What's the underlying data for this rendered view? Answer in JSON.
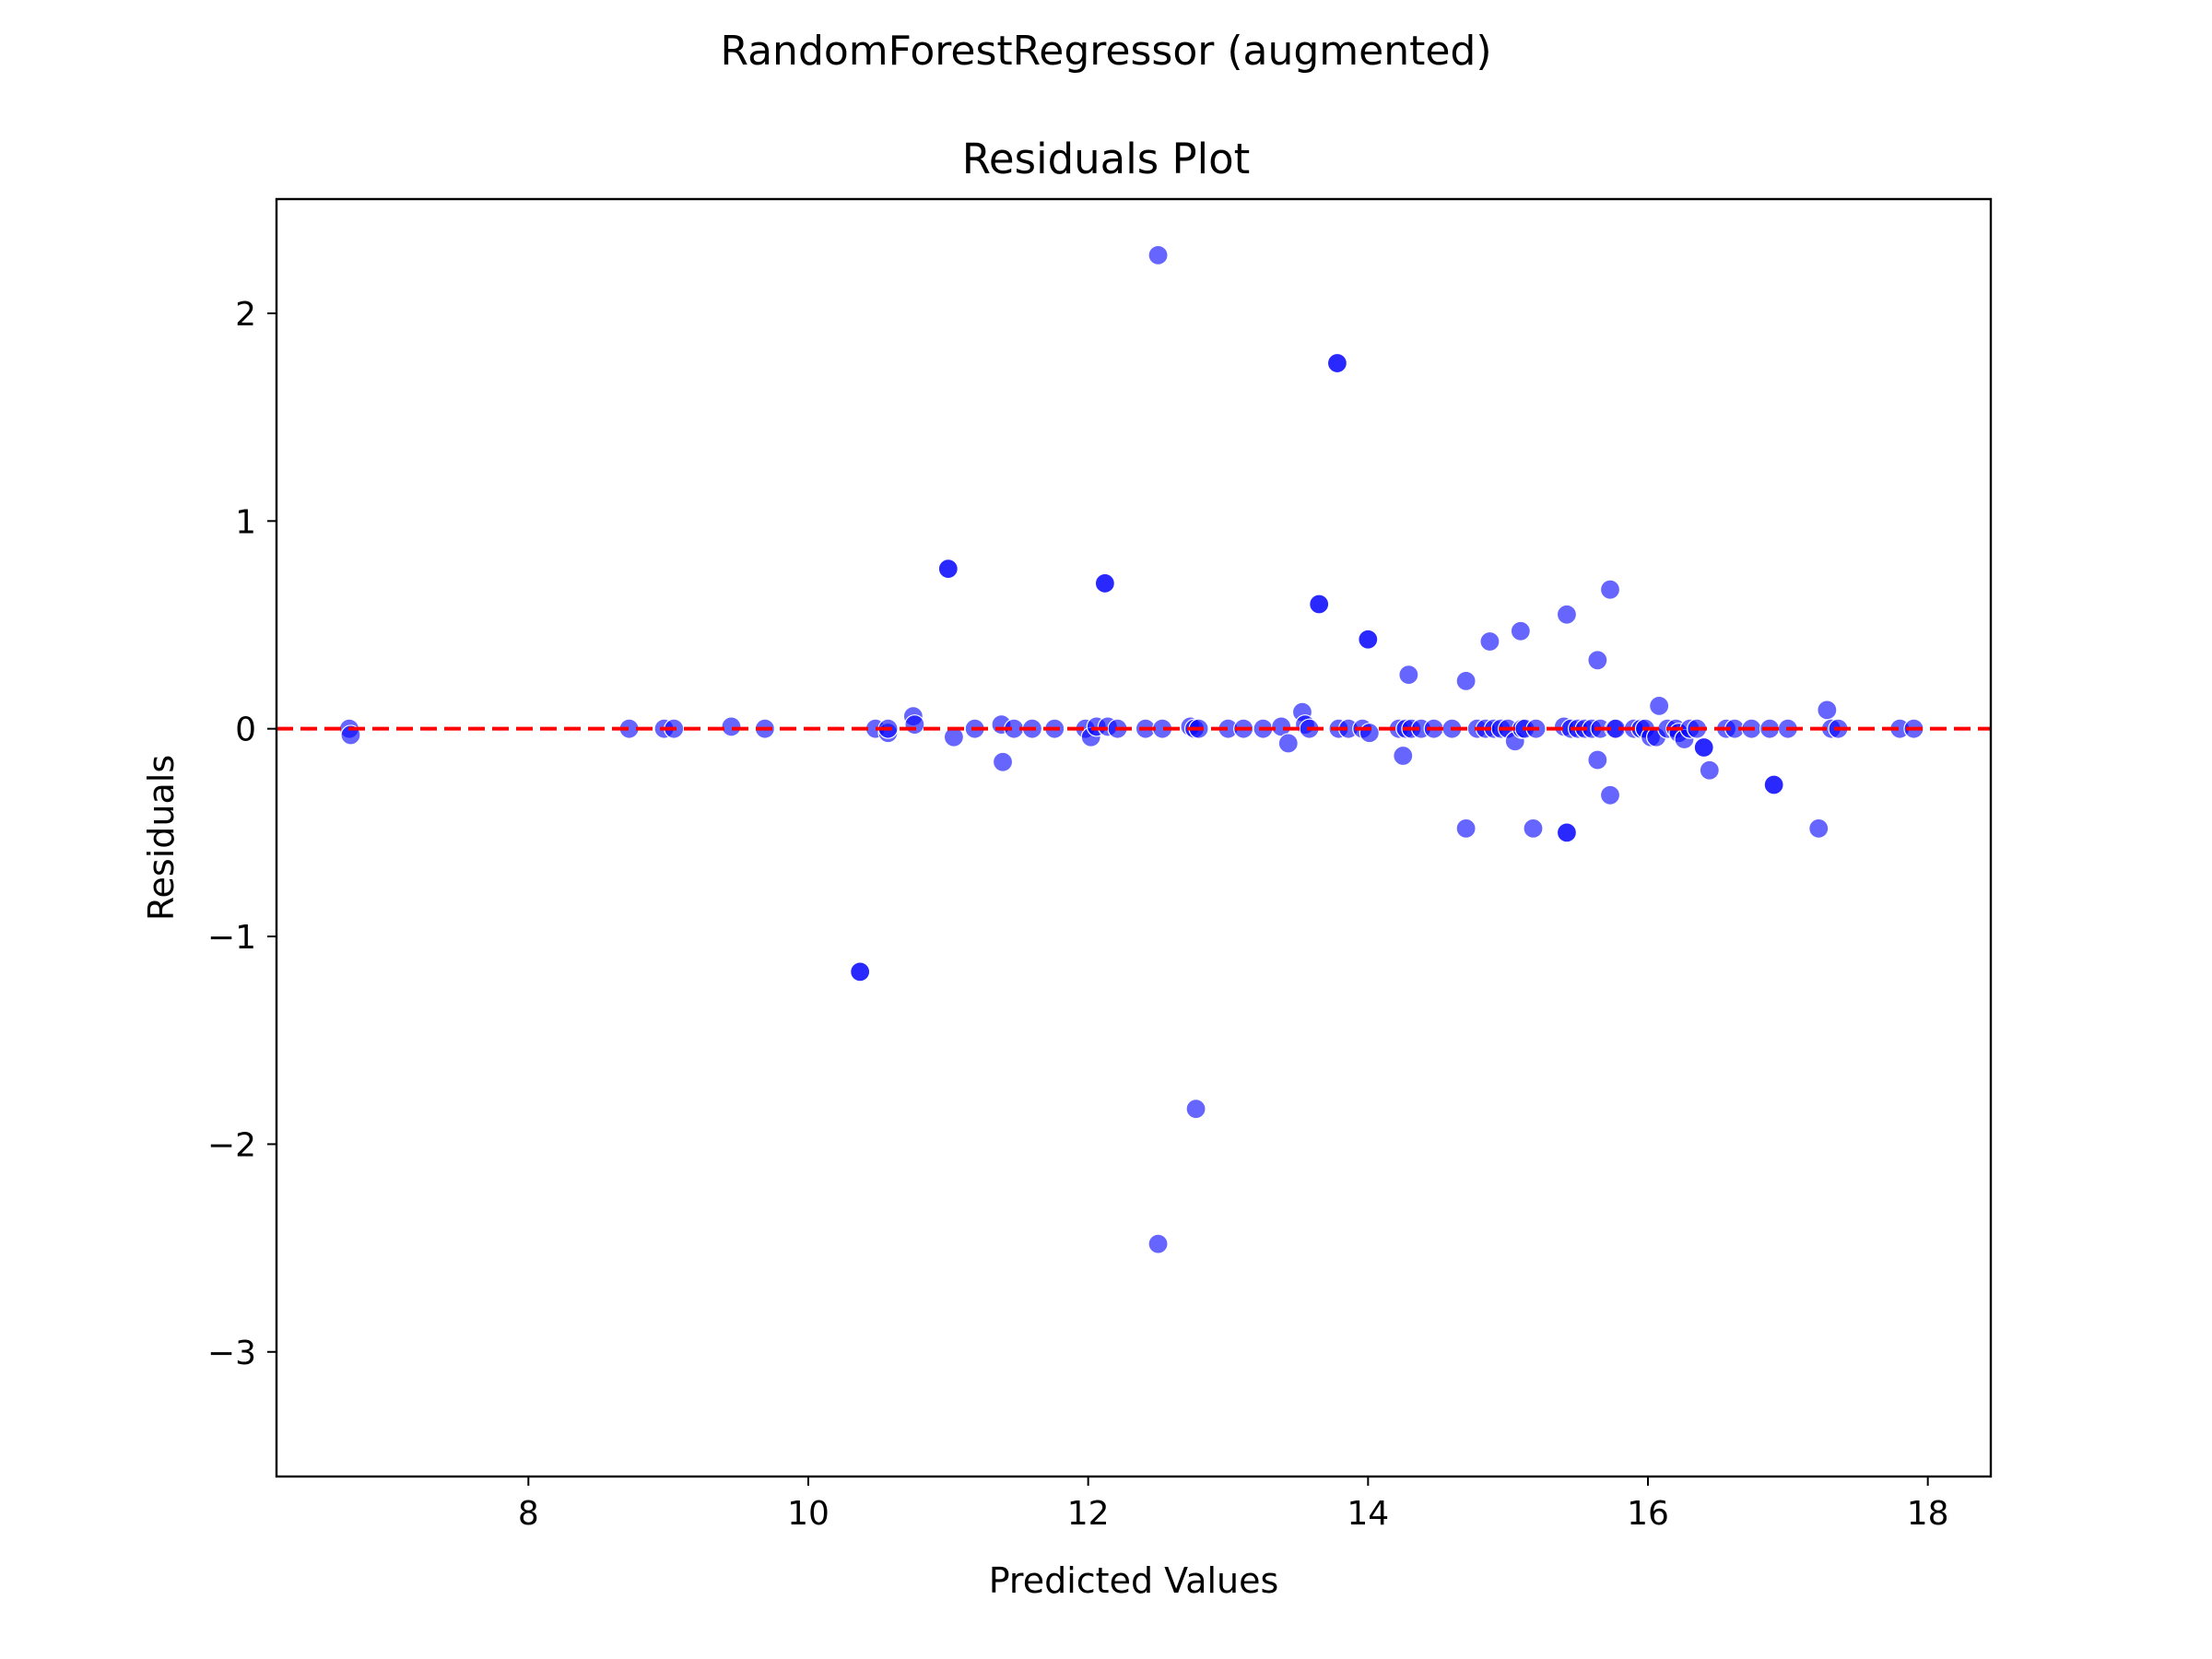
{
  "figure": {
    "suptitle": "RandomForestRegressor (augmented)"
  },
  "chart_data": {
    "type": "scatter",
    "title": "Residuals Plot",
    "xlabel": "Predicted Values",
    "ylabel": "Residuals",
    "xlim": [
      6.2,
      18.45
    ],
    "ylim": [
      -3.6,
      2.55
    ],
    "xticks": [
      8,
      10,
      12,
      14,
      16,
      18
    ],
    "yticks": [
      -3,
      -2,
      -1,
      0,
      1,
      2
    ],
    "xtick_labels": [
      "8",
      "10",
      "12",
      "14",
      "16",
      "18"
    ],
    "ytick_labels": [
      "−3",
      "−2",
      "−1",
      "0",
      "1",
      "2"
    ],
    "grid": false,
    "reference_line": {
      "y": 0,
      "style": "dashed",
      "color": "#ff0000"
    },
    "point_color": "#0000ff",
    "point_alpha": 0.6,
    "points": [
      [
        6.72,
        0.0
      ],
      [
        6.73,
        -0.03
      ],
      [
        8.72,
        0.0
      ],
      [
        8.97,
        0.0
      ],
      [
        9.04,
        0.0
      ],
      [
        9.45,
        0.01
      ],
      [
        9.69,
        0.0
      ],
      [
        10.37,
        -1.17
      ],
      [
        10.37,
        -1.17
      ],
      [
        10.48,
        0.0
      ],
      [
        10.57,
        -0.02
      ],
      [
        10.57,
        0.0
      ],
      [
        10.75,
        0.06
      ],
      [
        10.76,
        0.02
      ],
      [
        11.0,
        0.77
      ],
      [
        11.0,
        0.77
      ],
      [
        11.04,
        -0.04
      ],
      [
        11.19,
        0.0
      ],
      [
        11.38,
        0.02
      ],
      [
        11.39,
        -0.16
      ],
      [
        11.47,
        0.0
      ],
      [
        11.6,
        0.0
      ],
      [
        11.76,
        0.0
      ],
      [
        11.98,
        0.0
      ],
      [
        12.02,
        -0.04
      ],
      [
        12.06,
        0.01
      ],
      [
        12.12,
        0.7
      ],
      [
        12.12,
        0.7
      ],
      [
        12.14,
        0.01
      ],
      [
        12.21,
        0.0
      ],
      [
        12.41,
        0.0
      ],
      [
        12.5,
        2.28
      ],
      [
        12.5,
        -2.48
      ],
      [
        12.53,
        0.0
      ],
      [
        12.73,
        0.01
      ],
      [
        12.76,
        0.0
      ],
      [
        12.77,
        -1.83
      ],
      [
        12.79,
        0.0
      ],
      [
        13.0,
        0.0
      ],
      [
        13.11,
        0.0
      ],
      [
        13.25,
        0.0
      ],
      [
        13.38,
        0.01
      ],
      [
        13.43,
        -0.07
      ],
      [
        13.53,
        0.08
      ],
      [
        13.55,
        0.02
      ],
      [
        13.58,
        0.0
      ],
      [
        13.65,
        0.6
      ],
      [
        13.65,
        0.6
      ],
      [
        13.78,
        1.76
      ],
      [
        13.78,
        1.76
      ],
      [
        13.79,
        0.0
      ],
      [
        13.86,
        0.0
      ],
      [
        13.96,
        0.0
      ],
      [
        14.0,
        0.43
      ],
      [
        14.0,
        0.43
      ],
      [
        14.01,
        -0.02
      ],
      [
        14.22,
        0.0
      ],
      [
        14.25,
        -0.13
      ],
      [
        14.27,
        0.0
      ],
      [
        14.29,
        0.26
      ],
      [
        14.31,
        0.0
      ],
      [
        14.38,
        0.0
      ],
      [
        14.47,
        0.0
      ],
      [
        14.6,
        0.0
      ],
      [
        14.7,
        0.23
      ],
      [
        14.7,
        -0.48
      ],
      [
        14.78,
        0.0
      ],
      [
        14.84,
        0.0
      ],
      [
        14.87,
        0.42
      ],
      [
        14.9,
        0.0
      ],
      [
        14.95,
        0.0
      ],
      [
        15.0,
        0.0
      ],
      [
        15.05,
        -0.06
      ],
      [
        15.09,
        0.47
      ],
      [
        15.1,
        0.0
      ],
      [
        15.12,
        0.0
      ],
      [
        15.18,
        -0.48
      ],
      [
        15.2,
        0.0
      ],
      [
        15.4,
        0.01
      ],
      [
        15.42,
        0.55
      ],
      [
        15.42,
        -0.5
      ],
      [
        15.42,
        -0.5
      ],
      [
        15.45,
        0.0
      ],
      [
        15.5,
        0.0
      ],
      [
        15.55,
        0.0
      ],
      [
        15.6,
        0.0
      ],
      [
        15.64,
        0.33
      ],
      [
        15.64,
        -0.15
      ],
      [
        15.66,
        0.0
      ],
      [
        15.73,
        0.67
      ],
      [
        15.73,
        -0.32
      ],
      [
        15.76,
        0.0
      ],
      [
        15.77,
        0.0
      ],
      [
        15.9,
        0.0
      ],
      [
        15.95,
        0.0
      ],
      [
        15.98,
        0.0
      ],
      [
        16.02,
        -0.04
      ],
      [
        16.06,
        -0.04
      ],
      [
        16.08,
        0.11
      ],
      [
        16.14,
        0.0
      ],
      [
        16.2,
        0.0
      ],
      [
        16.22,
        -0.02
      ],
      [
        16.26,
        -0.05
      ],
      [
        16.3,
        0.0
      ],
      [
        16.35,
        0.0
      ],
      [
        16.4,
        -0.09
      ],
      [
        16.4,
        -0.09
      ],
      [
        16.44,
        -0.2
      ],
      [
        16.56,
        0.0
      ],
      [
        16.62,
        0.0
      ],
      [
        16.74,
        0.0
      ],
      [
        16.87,
        0.0
      ],
      [
        16.9,
        -0.27
      ],
      [
        16.9,
        -0.27
      ],
      [
        17.0,
        0.0
      ],
      [
        17.22,
        -0.48
      ],
      [
        17.28,
        0.09
      ],
      [
        17.31,
        0.0
      ],
      [
        17.36,
        0.0
      ],
      [
        17.8,
        0.0
      ],
      [
        17.9,
        0.0
      ]
    ]
  }
}
